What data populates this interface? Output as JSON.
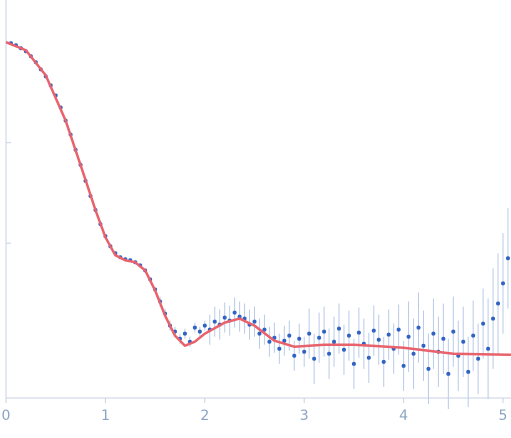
{
  "chart_data": {
    "type": "scatter",
    "xlim": [
      0,
      5.08
    ],
    "xticks": [
      0,
      1,
      2,
      3,
      4,
      5
    ],
    "ylim": [
      -0.54,
      3.37
    ],
    "yticks": [
      1,
      2,
      3
    ],
    "points": {
      "color": "#2f62c2",
      "error_color": "#b9cbe8",
      "x": [
        0.05,
        0.1,
        0.15,
        0.2,
        0.25,
        0.3,
        0.35,
        0.4,
        0.45,
        0.5,
        0.55,
        0.6,
        0.65,
        0.7,
        0.75,
        0.8,
        0.85,
        0.9,
        0.95,
        1.0,
        1.05,
        1.1,
        1.15,
        1.2,
        1.25,
        1.3,
        1.35,
        1.4,
        1.45,
        1.5,
        1.55,
        1.6,
        1.65,
        1.7,
        1.75,
        1.8,
        1.85,
        1.9,
        1.95,
        2.0,
        2.05,
        2.1,
        2.15,
        2.2,
        2.25,
        2.3,
        2.35,
        2.4,
        2.45,
        2.5,
        2.55,
        2.6,
        2.65,
        2.7,
        2.75,
        2.8,
        2.85,
        2.9,
        2.95,
        3.0,
        3.05,
        3.1,
        3.15,
        3.2,
        3.25,
        3.3,
        3.35,
        3.4,
        3.45,
        3.5,
        3.55,
        3.6,
        3.65,
        3.7,
        3.75,
        3.8,
        3.85,
        3.9,
        3.95,
        4.0,
        4.05,
        4.1,
        4.15,
        4.2,
        4.25,
        4.3,
        4.35,
        4.4,
        4.45,
        4.5,
        4.55,
        4.6,
        4.65,
        4.7,
        4.75,
        4.8,
        4.85,
        4.9,
        4.95,
        5.0,
        5.05
      ],
      "values": [
        2.99,
        2.97,
        2.94,
        2.91,
        2.86,
        2.8,
        2.73,
        2.66,
        2.57,
        2.47,
        2.35,
        2.22,
        2.08,
        1.93,
        1.78,
        1.62,
        1.47,
        1.33,
        1.19,
        1.07,
        0.97,
        0.9,
        0.86,
        0.84,
        0.83,
        0.81,
        0.78,
        0.73,
        0.64,
        0.54,
        0.42,
        0.3,
        0.18,
        0.12,
        0.05,
        0.1,
        0.02,
        0.16,
        0.12,
        0.18,
        0.14,
        0.22,
        0.19,
        0.26,
        0.23,
        0.31,
        0.27,
        0.25,
        0.19,
        0.22,
        0.1,
        0.14,
        0.02,
        0.06,
        -0.05,
        0.03,
        0.08,
        -0.12,
        0.05,
        -0.08,
        0.1,
        -0.15,
        0.06,
        0.12,
        -0.1,
        0.02,
        0.15,
        -0.06,
        0.08,
        -0.2,
        0.11,
        0.0,
        -0.14,
        0.13,
        0.04,
        -0.18,
        0.09,
        -0.05,
        0.14,
        -0.22,
        0.07,
        -0.1,
        0.16,
        -0.02,
        -0.25,
        0.1,
        -0.08,
        0.05,
        -0.3,
        0.12,
        -0.12,
        0.02,
        -0.28,
        0.08,
        -0.15,
        0.2,
        -0.05,
        0.25,
        0.4,
        0.6,
        0.85
      ],
      "errors": [
        0.01,
        0.01,
        0.01,
        0.01,
        0.01,
        0.01,
        0.01,
        0.01,
        0.01,
        0.01,
        0.01,
        0.01,
        0.01,
        0.01,
        0.01,
        0.01,
        0.01,
        0.01,
        0.01,
        0.01,
        0.01,
        0.01,
        0.01,
        0.01,
        0.01,
        0.01,
        0.01,
        0.01,
        0.01,
        0.01,
        0.05,
        0.05,
        0.05,
        0.05,
        0.05,
        0.05,
        0.05,
        0.05,
        0.05,
        0.05,
        0.15,
        0.15,
        0.15,
        0.15,
        0.15,
        0.15,
        0.15,
        0.15,
        0.15,
        0.15,
        0.15,
        0.15,
        0.15,
        0.15,
        0.15,
        0.15,
        0.15,
        0.15,
        0.15,
        0.15,
        0.25,
        0.25,
        0.25,
        0.25,
        0.25,
        0.25,
        0.25,
        0.25,
        0.25,
        0.25,
        0.25,
        0.25,
        0.25,
        0.25,
        0.25,
        0.25,
        0.25,
        0.25,
        0.25,
        0.25,
        0.35,
        0.35,
        0.35,
        0.35,
        0.35,
        0.35,
        0.35,
        0.35,
        0.35,
        0.35,
        0.35,
        0.35,
        0.35,
        0.35,
        0.35,
        0.35,
        0.5,
        0.5,
        0.5,
        0.5,
        0.5
      ]
    },
    "fit": {
      "color": "#e8616b",
      "x": [
        0,
        0.2,
        0.4,
        0.6,
        0.8,
        0.9,
        1.0,
        1.1,
        1.2,
        1.3,
        1.4,
        1.5,
        1.6,
        1.7,
        1.8,
        1.9,
        2.0,
        2.2,
        2.35,
        2.5,
        2.7,
        2.9,
        3.2,
        3.5,
        4.0,
        4.5,
        5.08
      ],
      "values": [
        3.0,
        2.92,
        2.67,
        2.22,
        1.63,
        1.33,
        1.06,
        0.88,
        0.83,
        0.81,
        0.73,
        0.53,
        0.28,
        0.08,
        -0.02,
        0.02,
        0.1,
        0.21,
        0.25,
        0.18,
        0.03,
        -0.03,
        -0.01,
        -0.01,
        -0.04,
        -0.1,
        -0.11
      ]
    }
  }
}
